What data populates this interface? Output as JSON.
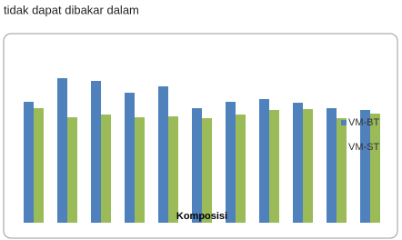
{
  "caption": "tidak  dapat  dibakar  dalam",
  "chart_data": {
    "type": "bar",
    "xlabel": "Komposisi",
    "categories": [
      null,
      null,
      null,
      null,
      null,
      null,
      null,
      null,
      null,
      null,
      null
    ],
    "series": [
      {
        "name": "VM-BT",
        "color": "#4f81bd",
        "values": [
          133,
          159,
          156,
          143,
          150,
          126,
          133,
          136,
          132,
          126,
          124
        ]
      },
      {
        "name": "VM-ST",
        "color": "#9bbb59",
        "values": [
          126,
          116,
          119,
          116,
          117,
          115,
          119,
          124,
          125,
          115,
          120
        ]
      }
    ],
    "ylim": [
      0,
      200
    ],
    "legend": "right"
  }
}
